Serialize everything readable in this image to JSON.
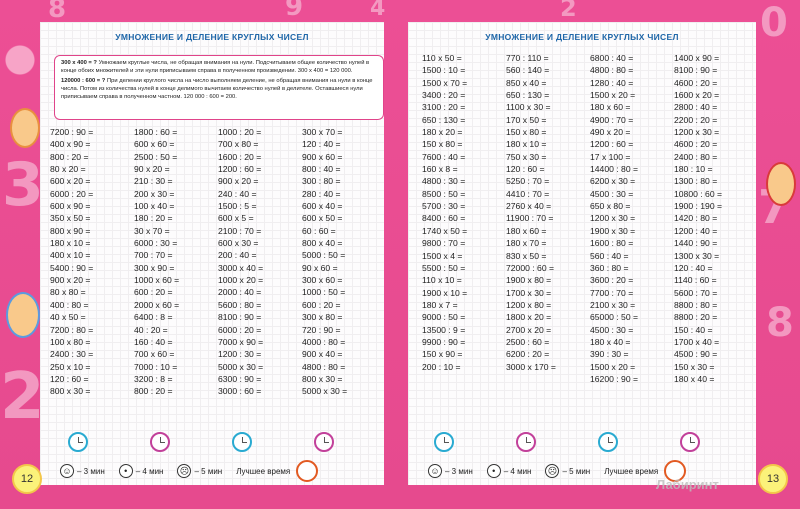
{
  "left_page": {
    "title": "УМНОЖЕНИЕ И ДЕЛЕНИЕ КРУГЛЫХ ЧИСЕЛ",
    "rule_mult_head": "300 x 400 = ?",
    "rule_mult_text": "Умножаем круглые числа, не обращая внимания на нули. Подсчитываем общее количество нулей в конце обоих множителей и эти нули приписываем справа в полученном произведении. 300 x 400 = 120 000.",
    "rule_div_head": "120000 : 600 = ?",
    "rule_div_text": "При делении круглого числа на число выполняем деление, не обращая внимания на нули в конце числа. Потом из количества нулей в конце делимого вычитаем количество нулей в делителе. Оставшиеся нули приписываем справа в полученном частном. 120 000 : 600 = 200.",
    "columns": [
      [
        "7200 : 90 =",
        "400 x 90 =",
        "800 : 20 =",
        "80 x 20 =",
        "600 x 20 =",
        "6000 : 20 =",
        "600 x 90 =",
        "350 x 50 =",
        "800 x 90 =",
        "180 x 10 =",
        "400 x 10 =",
        "5400 : 90 =",
        "900 x 20 =",
        "80 x 80 =",
        "400 : 80 =",
        "40 x 50 =",
        "7200 : 80 =",
        "100 x 80 =",
        "2400 : 30 =",
        "250 x 10 =",
        "120 : 60 =",
        "800 x 30 ="
      ],
      [
        "1800 : 60 =",
        "600 x 60 =",
        "2500 : 50 =",
        "90 x 20 =",
        "210 : 30 =",
        "200 x 30 =",
        "100 x 40 =",
        "180 : 20 =",
        "30 x 70 =",
        "6000 : 30 =",
        "700 : 70 =",
        "300 x 90 =",
        "1000 x 60 =",
        "600 : 20 =",
        "2000 x 60 =",
        "6400 : 8 =",
        "40 : 20 =",
        "160 : 40 =",
        "700 x 60 =",
        "7000 : 10 =",
        "3200 : 8 =",
        "800 : 20 ="
      ],
      [
        "1000 : 20 =",
        "700 x 80 =",
        "1600 : 20 =",
        "1200 : 60 =",
        "900 x 20 =",
        "240 : 40 =",
        "1500 : 5 =",
        "600 x 5 =",
        "2100 : 70 =",
        "600 x 30 =",
        "200 : 40 =",
        "3000 x 40 =",
        "1000 x 20 =",
        "2000 : 40 =",
        "5600 : 80 =",
        "8100 : 90 =",
        "6000 : 20 =",
        "7000 x 90 =",
        "1200 : 30 =",
        "5000 x 30 =",
        "6300 : 90 =",
        "3000 : 60 ="
      ],
      [
        "300 x 70 =",
        "120 : 40 =",
        "900 x 60 =",
        "800 : 40 =",
        "300 : 80 =",
        "280 : 40 =",
        "600 x 40 =",
        "600 x 50 =",
        "60 : 60 =",
        "800 x 40 =",
        "5000 : 50 =",
        "90 x 60 =",
        "300 x 60 =",
        "1000 : 50 =",
        "600 : 20 =",
        "300 x 80 =",
        "720 : 90 =",
        "4000 : 80 =",
        "900 x 40 =",
        "4800 : 80 =",
        "800 x 30 =",
        "5000 x 30 ="
      ]
    ],
    "legend": {
      "three": "– 3 мин",
      "four": "– 4 мин",
      "five": "– 5 мин",
      "best": "Лучшее время"
    },
    "page_number": "12"
  },
  "right_page": {
    "title": "УМНОЖЕНИЕ И ДЕЛЕНИЕ КРУГЛЫХ ЧИСЕЛ",
    "columns": [
      [
        "110 x 50 =",
        "1500 : 10 =",
        "1500 x 70 =",
        "3400 : 20 =",
        "3100 : 20 =",
        "650 : 130 =",
        "180 x 20 =",
        "150 x 80 =",
        "7600 : 40 =",
        "160 x 8 =",
        "4800 : 30 =",
        "8500 : 50 =",
        "5700 : 30 =",
        "8400 : 60 =",
        "1740 x 50 =",
        "9800 : 70 =",
        "1500 x 4 =",
        "5500 : 50 =",
        "110 x 10 =",
        "1900 x 10 =",
        "180 x 7 =",
        "9000 : 50 =",
        "13500 : 9 =",
        "9900 : 90 =",
        "150 x 90 =",
        "200 : 10 ="
      ],
      [
        "770 : 110 =",
        "560 : 140 =",
        "850 x 40 =",
        "650 : 130 =",
        "1100 x 30 =",
        "170 x 50 =",
        "150 x 80 =",
        "180 x 10 =",
        "750 x 30 =",
        "120 : 60 =",
        "5250 : 70 =",
        "4410 : 70 =",
        "2760 x 40 =",
        "11900 : 70 =",
        "180 x 60 =",
        "180 x 70 =",
        "830 x 50 =",
        "72000 : 60 =",
        "1900 x 80 =",
        "1700 x 30 =",
        "1200 x 80 =",
        "1800 x 20 =",
        "2700 x 20 =",
        "2500 : 60 =",
        "6200 : 20 =",
        "3000 x 170 ="
      ],
      [
        "6800 : 40 =",
        "4800 : 80 =",
        "1280 : 40 =",
        "1500 x 20 =",
        "180 x 60 =",
        "4900 : 70 =",
        "490 x 20 =",
        "1200 : 60 =",
        "17 x 100 =",
        "14400 : 80 =",
        "6200 x 30 =",
        "4500 : 30 =",
        "650 x 80 =",
        "1200 x 30 =",
        "1900 x 30 =",
        "1600 : 80 =",
        "560 : 40 =",
        "360 : 80 =",
        "3600 : 20 =",
        "7700 : 70 =",
        "2100 x 30 =",
        "65000 : 50 =",
        "4500 : 30 =",
        "180 x 40 =",
        "390 : 30 =",
        "1500 x 20 =",
        "16200 : 90 ="
      ],
      [
        "1400 x 90 =",
        "8100 : 90 =",
        "4600 : 20 =",
        "1600 x 20 =",
        "2800 : 40 =",
        "2200 : 20 =",
        "1200 x 30 =",
        "4600 : 20 =",
        "2400 : 80 =",
        "180 : 10 =",
        "1300 : 80 =",
        "10800 : 60 =",
        "1900 : 190 =",
        "1420 : 80 =",
        "1200 : 40 =",
        "1440 : 90 =",
        "1300 x 30 =",
        "120 : 40 =",
        "1140 : 60 =",
        "5600 : 70 =",
        "8800 : 80 =",
        "8800 : 20 =",
        "150 : 40 =",
        "1700 x 40 =",
        "4500 : 90 =",
        "150 x 30 =",
        "180 x 40 ="
      ]
    ],
    "legend": {
      "three": "– 3 мин",
      "four": "– 4 мин",
      "five": "– 5 мин",
      "best": "Лучшее время"
    },
    "page_number": "13",
    "watermark": "Лабиринт"
  },
  "colors": {
    "background": "#ec4f95",
    "title": "#1e66a8",
    "rule_border": "#e0448a",
    "clock_1": "#29aad1",
    "clock_2": "#c2409a",
    "clock_3": "#29aad1",
    "clock_4": "#c2409a"
  }
}
